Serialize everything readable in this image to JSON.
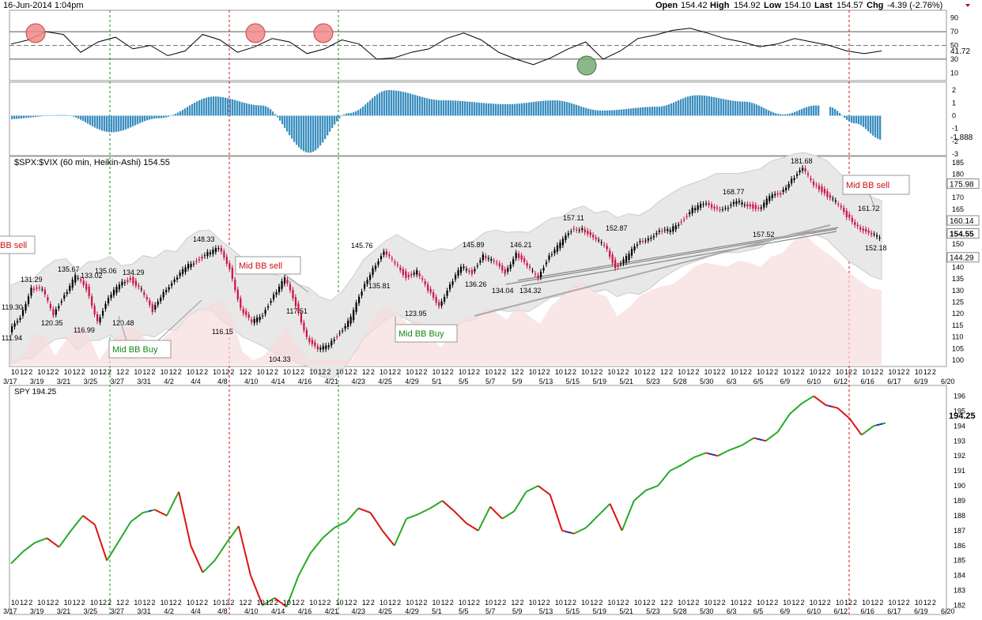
{
  "header": {
    "date": "16-Jun-2014 1:04pm",
    "open_label": "Open",
    "open": "154.42",
    "high_label": "High",
    "high": "154.92",
    "low_label": "Low",
    "low": "154.10",
    "last_label": "Last",
    "last": "154.57",
    "chg_label": "Chg",
    "chg": "-4.39 (-2.76%)"
  },
  "colors": {
    "rsi_line": "#000000",
    "macd_bar": "#3b8fbf",
    "up_candle": "#000000",
    "down_candle": "#cc1144",
    "bb_fill": "#e8e8e8",
    "lower_band_fill": "#f6dcdc",
    "green_vline": "#119911",
    "red_vline": "#cc1111",
    "spy_up": "#22aa22",
    "spy_down": "#dd1111",
    "spy_neutral": "#2222cc"
  },
  "x_axis": {
    "date_labels": [
      "3/17",
      "3/19",
      "3/21",
      "3/25",
      "3/27",
      "3/31",
      "4/2",
      "4/4",
      "4/8",
      "4/10",
      "4/14",
      "4/16",
      "4/21",
      "4/23",
      "4/25",
      "4/29",
      "5/1",
      "5/5",
      "5/7",
      "5/9",
      "5/13",
      "5/15",
      "5/19",
      "5/21",
      "5/23",
      "5/28",
      "5/30",
      "6/3",
      "6/5",
      "6/9",
      "6/10",
      "6/12",
      "6/16",
      "6/17",
      "6/19",
      "6/20"
    ],
    "hour_labels": [
      "10",
      "12",
      "2",
      "10",
      "12",
      "2",
      "10",
      "12",
      "2",
      "10",
      "12",
      "2",
      "12",
      "2",
      "10",
      "12",
      "2",
      "10",
      "12",
      "2",
      "10",
      "12",
      "2",
      "10",
      "12",
      "2",
      "12",
      "2",
      "10",
      "12",
      "2",
      "10",
      "12",
      "2",
      "10",
      "12",
      "2",
      "10",
      "12",
      "2",
      "12",
      "2",
      "10",
      "12",
      "2",
      "10",
      "12",
      "2",
      "10",
      "12",
      "2",
      "10",
      "12",
      "2",
      "10",
      "12",
      "2",
      "12",
      "2",
      "10",
      "12",
      "2",
      "10",
      "12",
      "2",
      "10",
      "12",
      "2",
      "10",
      "12",
      "2",
      "10",
      "12",
      "2",
      "12",
      "2",
      "10",
      "12",
      "2",
      "10",
      "12",
      "2",
      "10",
      "12",
      "2",
      "10",
      "12",
      "2",
      "10",
      "12",
      "2",
      "10",
      "12",
      "2",
      "10",
      "12",
      "2",
      "10",
      "12",
      "2",
      "10",
      "12",
      "2",
      "10",
      "12",
      "2"
    ]
  },
  "chart_data": [
    {
      "type": "line",
      "panel": "RSI",
      "y_ticks": [
        "90",
        "70",
        "50",
        "30",
        "10"
      ],
      "current_value_label": "41.72",
      "ylim": [
        0,
        100
      ],
      "x": [
        0,
        4,
        8,
        12,
        16,
        20,
        24,
        28,
        32,
        36,
        40,
        44,
        48,
        52,
        56,
        60,
        64,
        68,
        72,
        76,
        80,
        84,
        88,
        92,
        96,
        100,
        104,
        108,
        112,
        116,
        120,
        124,
        128,
        132,
        136,
        140,
        144,
        148,
        152,
        156,
        160,
        164,
        168,
        172,
        176,
        180,
        184,
        188,
        192,
        196,
        200
      ],
      "values": [
        52,
        58,
        70,
        66,
        40,
        55,
        62,
        45,
        50,
        35,
        42,
        66,
        58,
        40,
        48,
        60,
        55,
        38,
        45,
        58,
        52,
        30,
        32,
        40,
        45,
        60,
        68,
        58,
        40,
        30,
        22,
        32,
        45,
        55,
        30,
        42,
        60,
        65,
        72,
        75,
        68,
        60,
        55,
        48,
        52,
        60,
        55,
        50,
        42,
        38,
        42
      ]
    },
    {
      "type": "bar",
      "panel": "MACD Histogram",
      "y_ticks": [
        "2",
        "1",
        "0",
        "-1",
        "-2",
        "-3"
      ],
      "current_value_label": "-1.888",
      "ylim": [
        -3,
        2.5
      ]
    },
    {
      "type": "line",
      "title": "$SPX:$VIX (60 min, Heikin-Ashi) 154.55",
      "y_ticks": [
        "185",
        "180",
        "175",
        "170",
        "165",
        "160",
        "155",
        "150",
        "145",
        "140",
        "135",
        "130",
        "125",
        "120",
        "115",
        "110",
        "105",
        "100"
      ],
      "ylim": [
        98,
        187
      ],
      "price_labels": [
        "175.98",
        "160.14",
        "154.55",
        "144.29"
      ],
      "data_labels": [
        "111.94",
        "119.30",
        "131.29",
        "120.35",
        "135.67",
        "116.99",
        "133.02",
        "135.06",
        "120.48",
        "134.29",
        "148.33",
        "116.15",
        "104.33",
        "117.51",
        "145.76",
        "135.81",
        "123.95",
        "145.89",
        "136.26",
        "134.04",
        "146.21",
        "134.32",
        "157.11",
        "152.87",
        "168.77",
        "157.52",
        "181.68",
        "161.72",
        "152.18"
      ],
      "annotations": [
        "BB sell",
        "Mid BB sell",
        "Mid BB Buy",
        "Mid BB Buy",
        "Mid BB sell"
      ],
      "series": [
        {
          "values": [
            112,
            119,
            131,
            130,
            120,
            128,
            136,
            131,
            117,
            126,
            133,
            135,
            130,
            121,
            130,
            134,
            140,
            143,
            146,
            148,
            140,
            122,
            116,
            120,
            128,
            135,
            124,
            110,
            104,
            107,
            112,
            118,
            130,
            140,
            146,
            142,
            136,
            138,
            130,
            124,
            132,
            140,
            138,
            145,
            142,
            138,
            146,
            140,
            136,
            145,
            150,
            156,
            157,
            152,
            150,
            140,
            144,
            150,
            153,
            155,
            156,
            160,
            165,
            167,
            166,
            165,
            168,
            167,
            165,
            170,
            172,
            178,
            182,
            176,
            172,
            168,
            162,
            158,
            154,
            153
          ]
        }
      ]
    },
    {
      "type": "line",
      "title": "SPY 194.25",
      "y_ticks": [
        "196",
        "195",
        "194",
        "193",
        "192",
        "191",
        "190",
        "189",
        "188",
        "187",
        "186",
        "185",
        "184",
        "183",
        "182"
      ],
      "ylim": [
        181.5,
        196.5
      ],
      "current_value_label": "194.25",
      "series": [
        {
          "values": [
            184.8,
            185.6,
            186.2,
            186.5,
            185.9,
            187.0,
            188.0,
            187.4,
            185.0,
            186.3,
            187.6,
            188.2,
            188.4,
            188.0,
            189.6,
            186.0,
            184.2,
            185.0,
            186.2,
            187.3,
            184.0,
            182.0,
            182.5,
            181.9,
            184.0,
            185.5,
            186.5,
            187.2,
            187.6,
            188.5,
            188.2,
            187.0,
            186.0,
            187.8,
            188.1,
            188.5,
            189.0,
            188.3,
            187.5,
            187.0,
            188.6,
            187.8,
            188.3,
            189.6,
            190.0,
            189.4,
            187.0,
            186.8,
            187.2,
            188.0,
            188.8,
            187.0,
            189.0,
            189.7,
            190.0,
            191.0,
            191.4,
            191.9,
            192.2,
            192.0,
            192.4,
            192.7,
            193.2,
            193.0,
            193.6,
            194.8,
            195.5,
            196.0,
            195.4,
            195.2,
            194.5,
            193.4,
            194.0,
            194.2
          ]
        }
      ]
    }
  ]
}
